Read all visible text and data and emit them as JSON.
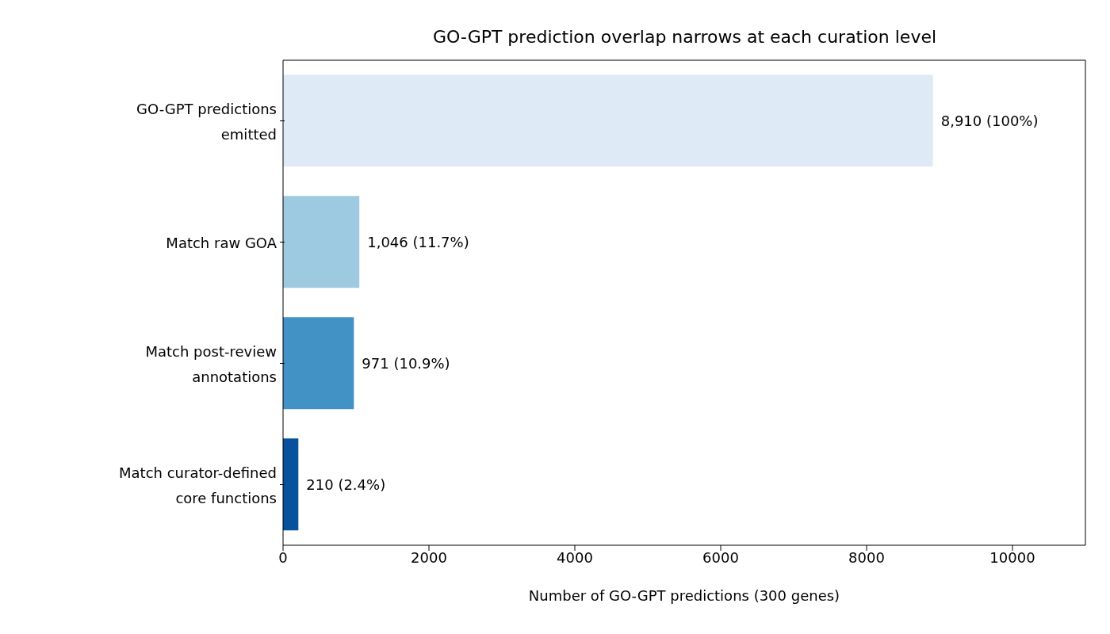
{
  "chart_data": {
    "type": "bar",
    "orientation": "horizontal",
    "title": "GO-GPT prediction overlap narrows at each curation level",
    "xlabel": "Number of GO-GPT predictions (300 genes)",
    "categories": [
      "GO-GPT predictions\nemitted",
      "Match raw GOA",
      "Match post-review\nannotations",
      "Match curator-defined\ncore functions"
    ],
    "values": [
      8910,
      1046,
      971,
      210
    ],
    "colors": [
      "#deebf7",
      "#9ecae1",
      "#4292c6",
      "#08519c"
    ],
    "value_labels": [
      "8,910 (100%)",
      "1,046 (11.7%)",
      "971 (10.9%)",
      "210 (2.4%)"
    ],
    "xlim": [
      0,
      11000
    ],
    "xticks": [
      0,
      2000,
      4000,
      6000,
      8000,
      10000
    ],
    "grid": false
  }
}
